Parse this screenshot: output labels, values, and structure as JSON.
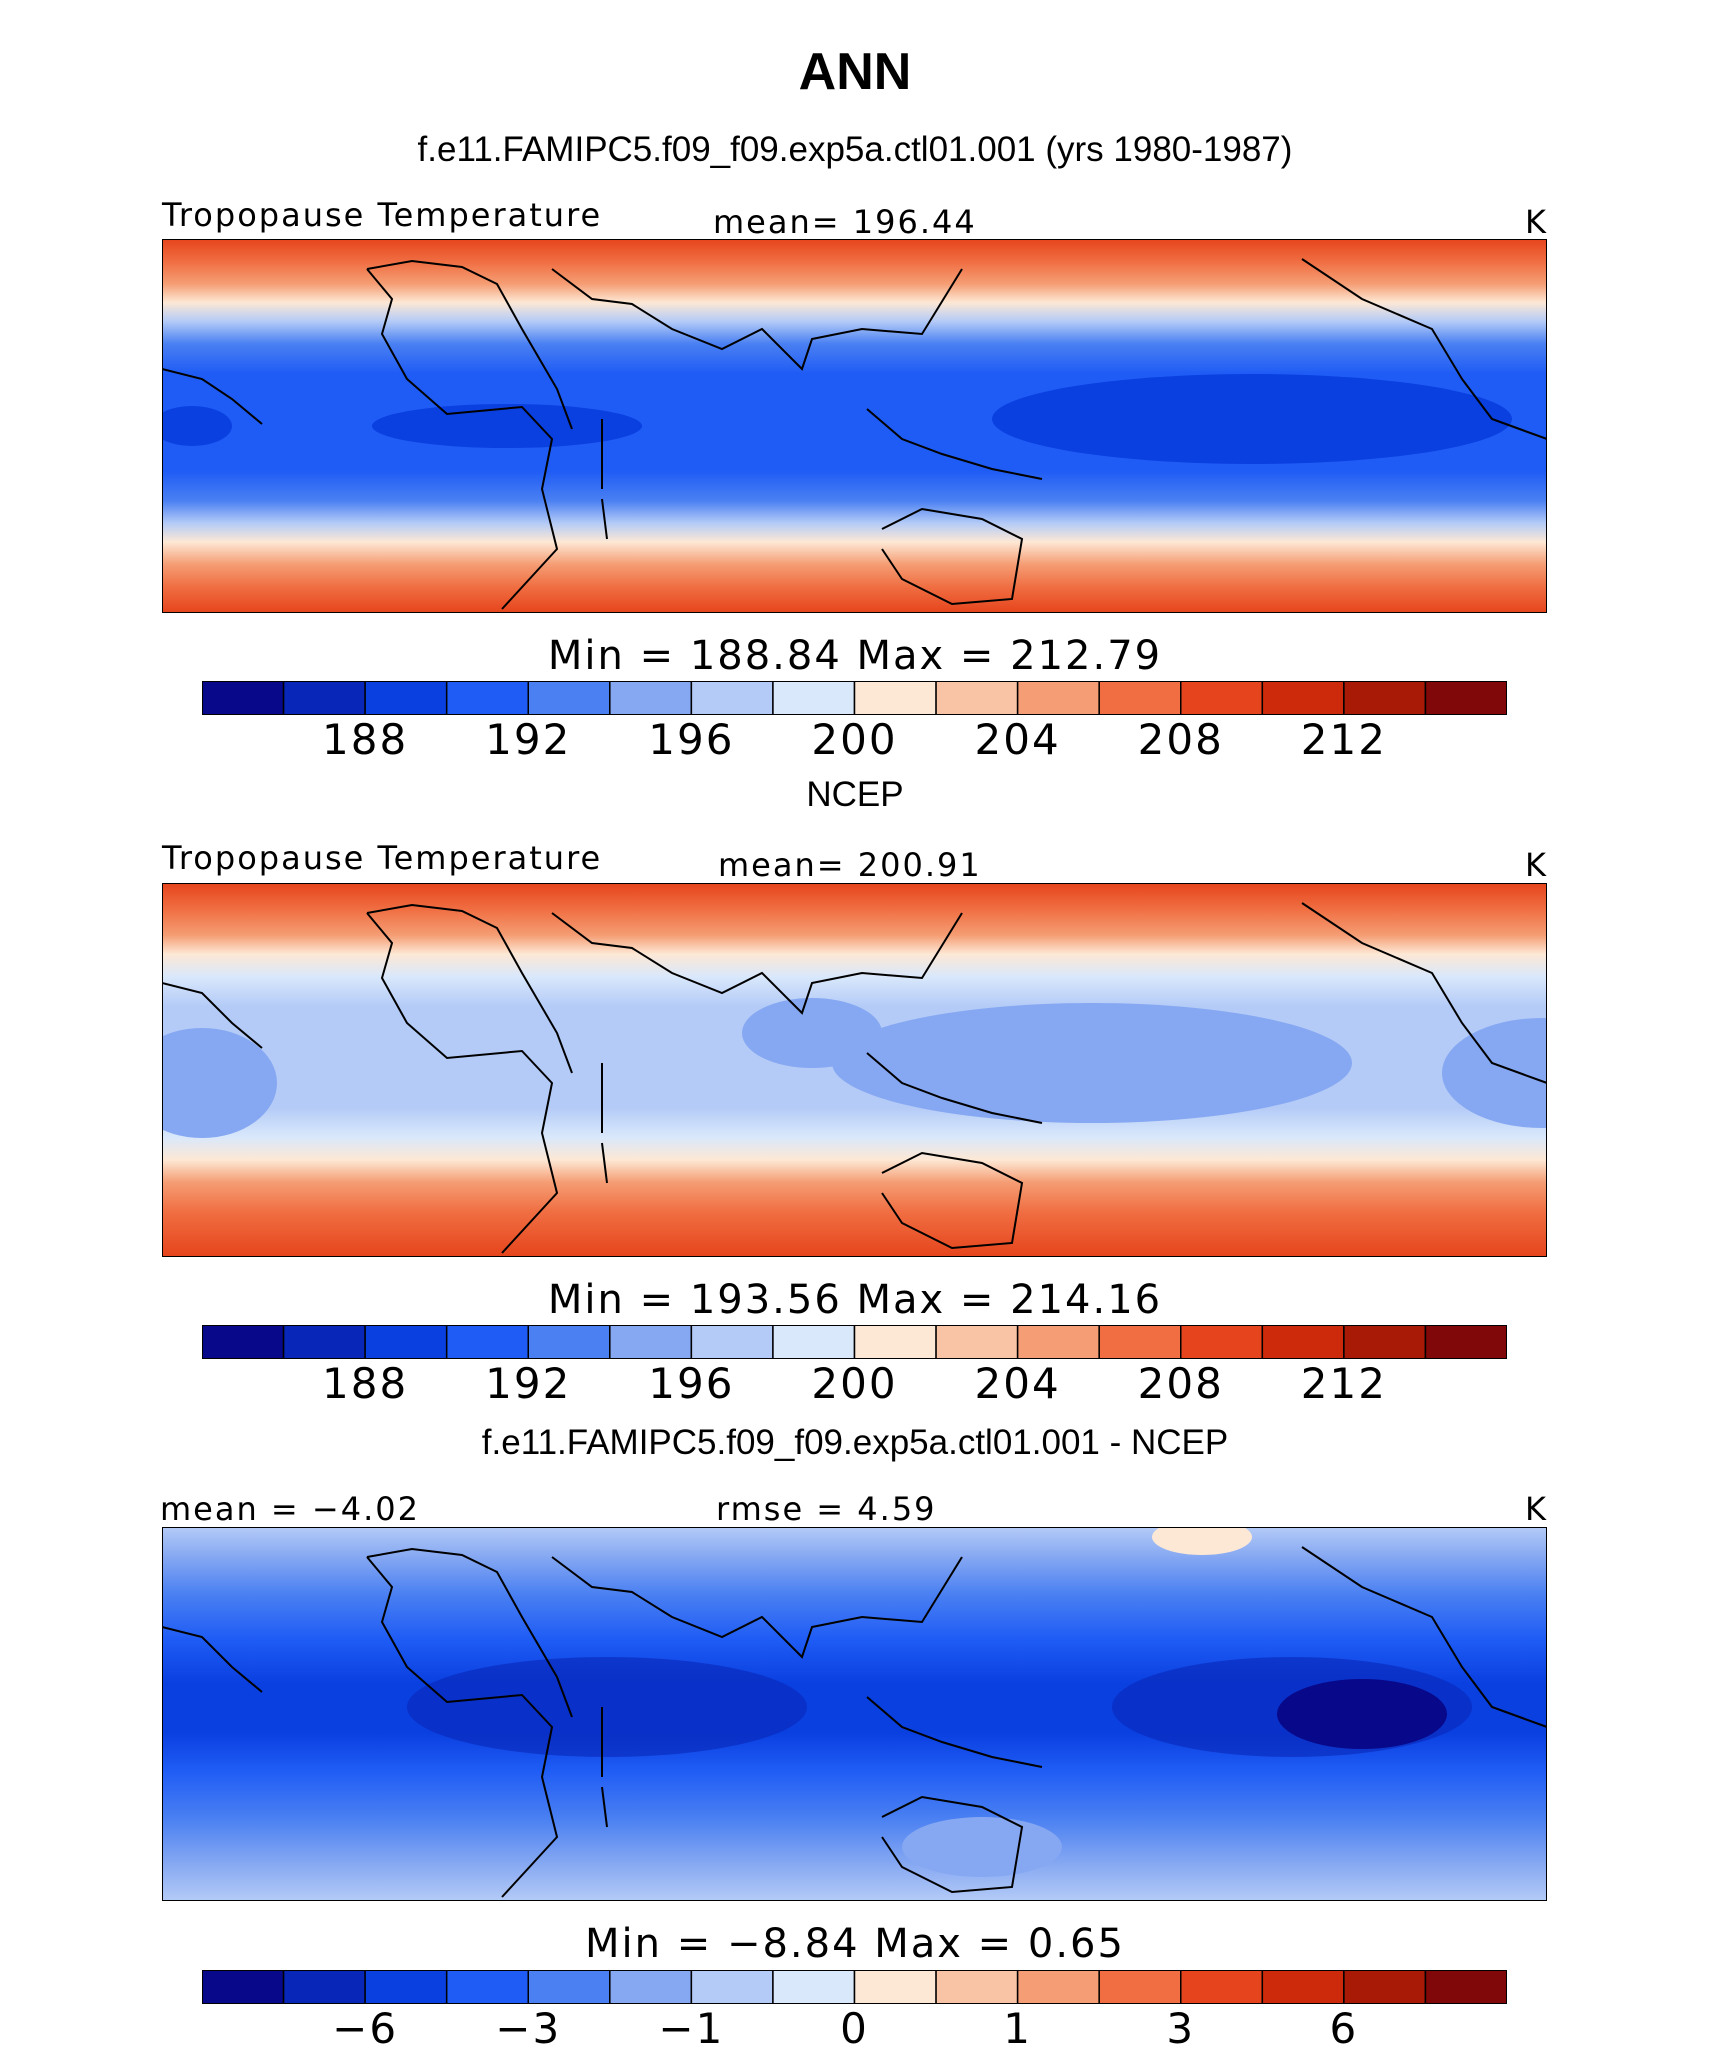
{
  "title": "ANN",
  "colorbar_colors": [
    "#08088a",
    "#0826b8",
    "#0a3fe0",
    "#1f5cf5",
    "#4a80f2",
    "#86a8f2",
    "#b4cbf7",
    "#d9e8fb",
    "#fde8d5",
    "#f8c4a5",
    "#f59d74",
    "#f06e42",
    "#e6441c",
    "#cc2a0a",
    "#a81a06",
    "#800808"
  ],
  "panels": [
    {
      "heading": "f.e11.FAMIPC5.f09_f09.exp5a.ctl01.001 (yrs 1980-1987)",
      "left_label": "Tropopause Temperature",
      "center_label": "mean= 196.44",
      "units": "K",
      "stats": "Min = 188.84 Max = 212.79",
      "ticks": [
        "188",
        "192",
        "196",
        "200",
        "204",
        "208",
        "212"
      ],
      "map_type": "model"
    },
    {
      "heading": "NCEP",
      "left_label": "Tropopause Temperature",
      "center_label": "mean= 200.91",
      "units": "K",
      "stats": "Min = 193.56 Max = 214.16",
      "ticks": [
        "188",
        "192",
        "196",
        "200",
        "204",
        "208",
        "212"
      ],
      "map_type": "obs"
    },
    {
      "heading": "f.e11.FAMIPC5.f09_f09.exp5a.ctl01.001 - NCEP",
      "left_label": "mean = −4.02",
      "center_label": "rmse = 4.59",
      "units": "K",
      "stats": "Min = −8.84 Max = 0.65",
      "ticks": [
        "−6",
        "−3",
        "−1",
        "0",
        "1",
        "3",
        "6"
      ],
      "map_type": "diff"
    }
  ]
}
